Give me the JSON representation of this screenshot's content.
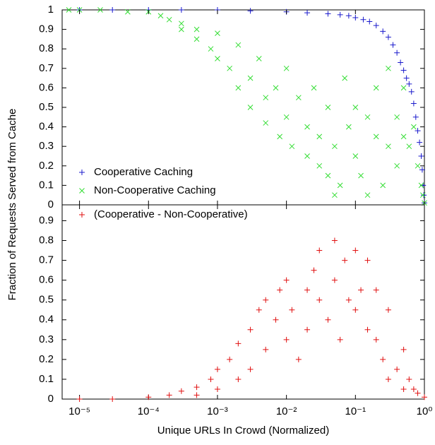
{
  "chart_data": [
    {
      "type": "scatter",
      "ylabel": "Fraction of Requests Served from Cache",
      "xscale": "log",
      "xlim": [
        5.6e-06,
        1
      ],
      "ylim": [
        0,
        1
      ],
      "yticks": [
        0,
        0.1,
        0.2,
        0.3,
        0.4,
        0.5,
        0.6,
        0.7,
        0.8,
        0.9,
        1
      ],
      "legend": "lower left",
      "series": [
        {
          "name": "Cooperative Caching",
          "color": "#1a1acc",
          "marker": "+",
          "x": [
            1e-05,
            3e-05,
            0.0001,
            0.0003,
            0.001,
            0.003,
            0.01,
            0.02,
            0.04,
            0.06,
            0.08,
            0.1,
            0.13,
            0.16,
            0.2,
            0.25,
            0.3,
            0.35,
            0.4,
            0.45,
            0.5,
            0.55,
            0.6,
            0.65,
            0.7,
            0.75,
            0.8,
            0.85,
            0.9,
            0.93,
            0.96,
            0.98,
            1.0
          ],
          "values": [
            1,
            1,
            1,
            1,
            1,
            0.995,
            0.99,
            0.985,
            0.98,
            0.975,
            0.97,
            0.96,
            0.95,
            0.94,
            0.92,
            0.89,
            0.86,
            0.82,
            0.78,
            0.73,
            0.69,
            0.65,
            0.62,
            0.58,
            0.52,
            0.45,
            0.38,
            0.32,
            0.25,
            0.18,
            0.1,
            0.05,
            0.01
          ]
        },
        {
          "name": "Non-Cooperative Caching",
          "color": "#33dd33",
          "marker": "x",
          "x": [
            7e-06,
            1e-05,
            2e-05,
            5e-05,
            0.0001,
            0.00015,
            0.0002,
            0.0003,
            0.0003,
            0.0005,
            0.0005,
            0.0008,
            0.001,
            0.001,
            0.0015,
            0.002,
            0.002,
            0.003,
            0.003,
            0.004,
            0.005,
            0.005,
            0.007,
            0.008,
            0.01,
            0.01,
            0.012,
            0.015,
            0.02,
            0.02,
            0.025,
            0.03,
            0.03,
            0.04,
            0.04,
            0.05,
            0.05,
            0.06,
            0.07,
            0.08,
            0.1,
            0.1,
            0.12,
            0.15,
            0.15,
            0.2,
            0.2,
            0.25,
            0.3,
            0.3,
            0.4,
            0.4,
            0.5,
            0.5,
            0.6,
            0.7,
            0.8,
            0.9,
            0.95,
            1
          ],
          "values": [
            1,
            1,
            1,
            0.99,
            0.99,
            0.97,
            0.95,
            0.93,
            0.9,
            0.9,
            0.85,
            0.8,
            0.88,
            0.75,
            0.7,
            0.82,
            0.6,
            0.65,
            0.5,
            0.75,
            0.55,
            0.42,
            0.6,
            0.35,
            0.7,
            0.45,
            0.3,
            0.55,
            0.25,
            0.4,
            0.6,
            0.2,
            0.35,
            0.15,
            0.5,
            0.3,
            0.05,
            0.1,
            0.65,
            0.4,
            0.25,
            0.5,
            0.15,
            0.05,
            0.45,
            0.35,
            0.6,
            0.1,
            0.3,
            0.7,
            0.45,
            0.2,
            0.6,
            0.35,
            0.3,
            0.4,
            0.2,
            0.1,
            0.05,
            0.01
          ]
        }
      ]
    },
    {
      "type": "scatter",
      "xlabel": "Unique URLs In Crowd (Normalized)",
      "xscale": "log",
      "xlim": [
        5.6e-06,
        1
      ],
      "ylim": [
        0,
        0.98
      ],
      "xticks": [
        {
          "value": 1e-05,
          "label": "10⁻⁵"
        },
        {
          "value": 0.0001,
          "label": "10⁻⁴"
        },
        {
          "value": 0.001,
          "label": "10⁻³"
        },
        {
          "value": 0.01,
          "label": "10⁻²"
        },
        {
          "value": 0.1,
          "label": "10⁻¹"
        },
        {
          "value": 1,
          "label": "10⁰"
        }
      ],
      "yticks": [
        0,
        0.1,
        0.2,
        0.3,
        0.4,
        0.5,
        0.6,
        0.7,
        0.8,
        0.9
      ],
      "legend": "upper left",
      "series": [
        {
          "name": "(Cooperative - Non-Cooperative)",
          "color": "#e01010",
          "marker": "+",
          "x": [
            1e-05,
            3e-05,
            0.0001,
            0.0002,
            0.0003,
            0.0005,
            0.0005,
            0.0008,
            0.001,
            0.001,
            0.0015,
            0.002,
            0.002,
            0.003,
            0.003,
            0.004,
            0.005,
            0.005,
            0.007,
            0.008,
            0.01,
            0.01,
            0.012,
            0.015,
            0.02,
            0.02,
            0.025,
            0.03,
            0.03,
            0.04,
            0.05,
            0.05,
            0.06,
            0.07,
            0.08,
            0.1,
            0.1,
            0.12,
            0.15,
            0.15,
            0.2,
            0.2,
            0.25,
            0.3,
            0.3,
            0.4,
            0.5,
            0.5,
            0.6,
            0.7,
            0.8,
            1
          ],
          "values": [
            0,
            0,
            0.01,
            0.02,
            0.04,
            0.06,
            0.02,
            0.1,
            0.05,
            0.15,
            0.2,
            0.1,
            0.28,
            0.35,
            0.15,
            0.45,
            0.25,
            0.5,
            0.4,
            0.55,
            0.3,
            0.6,
            0.45,
            0.2,
            0.55,
            0.35,
            0.65,
            0.5,
            0.75,
            0.4,
            0.8,
            0.6,
            0.3,
            0.7,
            0.5,
            0.75,
            0.45,
            0.55,
            0.7,
            0.35,
            0.3,
            0.55,
            0.2,
            0.45,
            0.1,
            0.15,
            0.25,
            0.05,
            0.1,
            0.05,
            0.03,
            0.01
          ]
        }
      ]
    }
  ]
}
